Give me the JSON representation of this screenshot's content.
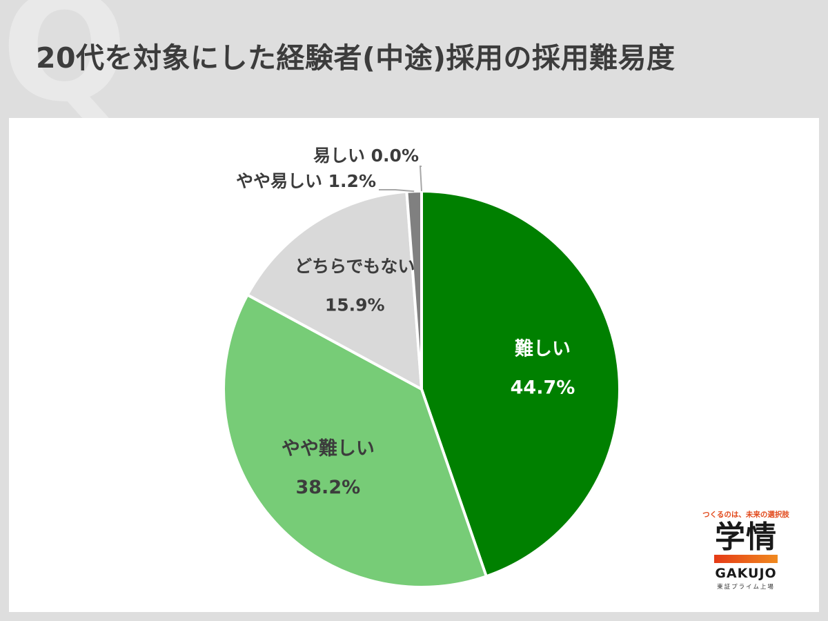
{
  "header": {
    "q_mark": "Q",
    "title": "20代を対象にした経験者(中途)採用の採用難易度"
  },
  "chart_data": {
    "type": "pie",
    "title": "20代を対象にした経験者(中途)採用の採用難易度",
    "slices": [
      {
        "label": "難しい",
        "value": 44.7,
        "value_text": "44.7%",
        "color": "#008000"
      },
      {
        "label": "やや難しい",
        "value": 38.2,
        "value_text": "38.2%",
        "color": "#77cc77"
      },
      {
        "label": "どちらでもない",
        "value": 15.9,
        "value_text": "15.9%",
        "color": "#d9d9d9"
      },
      {
        "label": "やや易しい",
        "value": 1.2,
        "value_text": "1.2%",
        "color": "#808080"
      },
      {
        "label": "易しい",
        "value": 0.0,
        "value_text": "0.0%",
        "color": "#404040"
      }
    ],
    "start": "12 o'clock, clockwise",
    "label_colors": {
      "inside_dark": "#ffffff",
      "inside_light": "#3c3c3c",
      "outside": "#3c3c3c"
    }
  },
  "logo": {
    "tagline": "つくるのは、未来の選択肢",
    "mark": "学情",
    "name_en": "GAKUJO",
    "listing": "東証プライム上場",
    "bar_colors": [
      "#e53a16",
      "#f08a1f"
    ]
  }
}
